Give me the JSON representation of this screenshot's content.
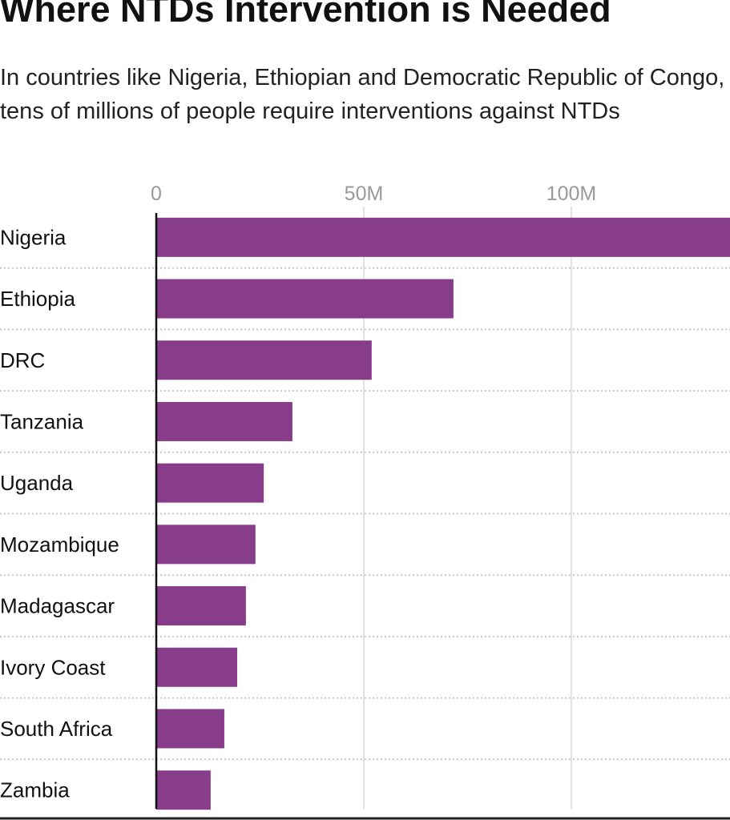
{
  "chart_data": {
    "type": "bar",
    "orientation": "horizontal",
    "title": "Where NTDs Intervention is Needed",
    "subtitle": "In countries like Nigeria, Ethiopian and Democratic Republic of Congo, tens of millions of people require interventions against NTDs",
    "categories": [
      "Nigeria",
      "Ethiopia",
      "DRC",
      "Tanzania",
      "Uganda",
      "Mozambique",
      "Madagascar",
      "Ivory Coast",
      "South Africa",
      "Zambia"
    ],
    "values": [
      140,
      71.6,
      51.9,
      32.8,
      25.9,
      23.9,
      21.6,
      19.5,
      16.4,
      13.1
    ],
    "unit": "people (millions)",
    "xticks": [
      0,
      50,
      100
    ],
    "xtick_labels": [
      "0",
      "50M",
      "100M"
    ],
    "xlim": [
      0,
      137
    ],
    "grid": true,
    "bar_color": "#883d8a"
  }
}
